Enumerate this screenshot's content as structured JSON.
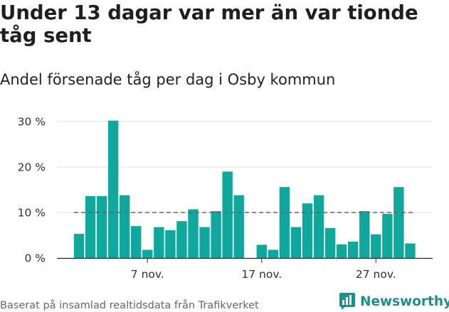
{
  "title": "Under 13 dagar var mer än var tionde tåg sent",
  "subtitle": "Andel försenade tåg per dag i Osby kommun",
  "source": "Baserat på insamlad realtidsdata från Trafikverket",
  "brand": "Newsworthy",
  "colors": {
    "bar": "#10a89d",
    "grid": "#dddddd",
    "reference": "#666666",
    "brand": "#1f8f8a"
  },
  "chart_data": {
    "type": "bar",
    "x": [
      "1 nov.",
      "2 nov.",
      "3 nov.",
      "4 nov.",
      "5 nov.",
      "6 nov.",
      "7 nov.",
      "8 nov.",
      "9 nov.",
      "10 nov.",
      "11 nov.",
      "12 nov.",
      "13 nov.",
      "14 nov.",
      "15 nov.",
      "16 nov.",
      "17 nov.",
      "18 nov.",
      "19 nov.",
      "20 nov.",
      "21 nov.",
      "22 nov.",
      "23 nov.",
      "24 nov.",
      "25 nov.",
      "26 nov.",
      "27 nov.",
      "28 nov.",
      "29 nov.",
      "30 nov.",
      "1 dec."
    ],
    "values": [
      5.3,
      13.6,
      13.6,
      30.2,
      13.8,
      7.0,
      1.8,
      6.8,
      6.1,
      8.1,
      10.7,
      6.8,
      10.3,
      19.0,
      13.8,
      0,
      2.9,
      1.8,
      15.6,
      6.8,
      12.0,
      13.8,
      6.6,
      3.0,
      3.6,
      10.3,
      5.2,
      9.7,
      15.6,
      3.2,
      0
    ],
    "y_ticks": [
      0,
      10,
      20,
      30
    ],
    "y_tick_labels": [
      "0 %",
      "10 %",
      "20 %",
      "30 %"
    ],
    "x_ticks": [
      {
        "index": 6,
        "label": "7 nov."
      },
      {
        "index": 16,
        "label": "17 nov."
      },
      {
        "index": 26,
        "label": "27 nov."
      }
    ],
    "ylim": [
      0,
      30
    ],
    "reference_line": {
      "value": 10,
      "style": "dashed"
    },
    "grid": true
  }
}
